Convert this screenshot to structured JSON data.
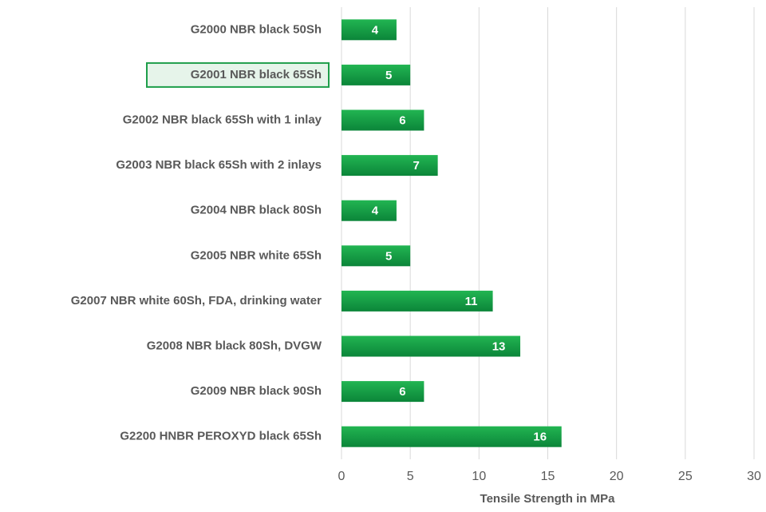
{
  "chart_data": {
    "type": "barh",
    "categories": [
      "G2000 NBR black 50Sh",
      "G2001 NBR black 65Sh",
      "G2002 NBR black 65Sh with 1 inlay",
      "G2003 NBR black 65Sh with 2 inlays",
      "G2004 NBR black 80Sh",
      "G2005 NBR white 65Sh",
      "G2007 NBR white 60Sh, FDA, drinking water",
      "G2008 NBR black 80Sh, DVGW",
      "G2009 NBR black 90Sh",
      "G2200 HNBR PEROXYD black 65Sh"
    ],
    "values": [
      4,
      5,
      6,
      7,
      4,
      5,
      11,
      13,
      6,
      16
    ],
    "color": "#139a43",
    "xlabel": "Tensile Strength in MPa",
    "xlim": [
      0,
      30
    ],
    "xticks": [
      0,
      5,
      10,
      15,
      20,
      25,
      30
    ],
    "grid": true,
    "highlight": 1
  }
}
